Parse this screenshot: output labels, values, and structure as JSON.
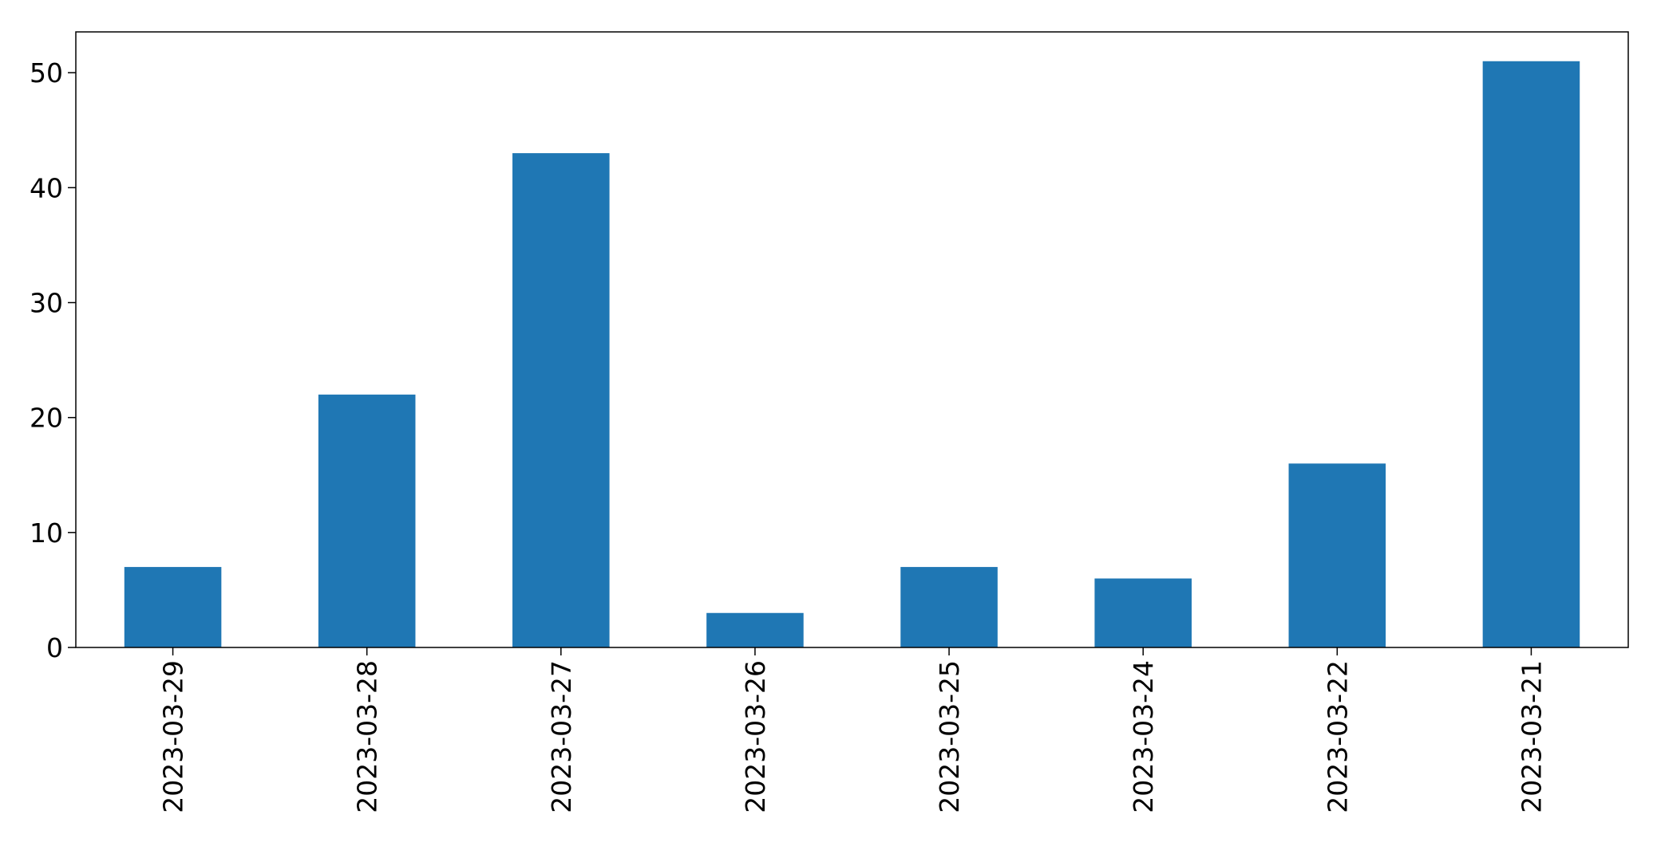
{
  "chart_data": {
    "type": "bar",
    "title": "",
    "xlabel": "",
    "ylabel": "",
    "categories": [
      "2023-03-29",
      "2023-03-28",
      "2023-03-27",
      "2023-03-26",
      "2023-03-25",
      "2023-03-24",
      "2023-03-22",
      "2023-03-21"
    ],
    "values": [
      7,
      22,
      43,
      3,
      7,
      6,
      16,
      51
    ],
    "ylim": [
      0,
      53.55
    ],
    "yticks": [
      0,
      10,
      20,
      30,
      40,
      50
    ],
    "grid": false,
    "legend": "none",
    "bar_color": "#1f77b4"
  }
}
